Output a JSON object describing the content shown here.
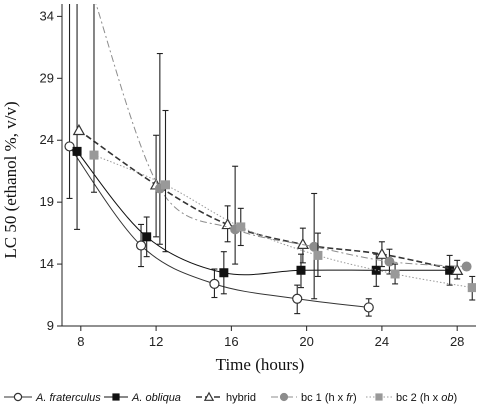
{
  "chart_data": {
    "type": "line",
    "xlabel": "Time (hours)",
    "ylabel": "LC 50 (ethanol %, v/v)",
    "xlim": [
      7,
      29
    ],
    "ylim": [
      9,
      35
    ],
    "xticks": [
      8,
      12,
      16,
      20,
      24,
      28
    ],
    "yticks": [
      9,
      14,
      19,
      24,
      29,
      34
    ],
    "grid": false,
    "legend_position": "bottom",
    "series": [
      {
        "name": "A. fraterculus",
        "italic": true,
        "marker": "open-circle",
        "line": "solid",
        "color": "#333333",
        "points": [
          {
            "x": 7.4,
            "y": 23.5,
            "lo": 19.3,
            "hi": 35.5
          },
          {
            "x": 11.2,
            "y": 15.5,
            "lo": 13.8,
            "hi": 17.2
          },
          {
            "x": 15.1,
            "y": 12.4,
            "lo": 11.3,
            "hi": 13.6
          },
          {
            "x": 19.5,
            "y": 11.2,
            "lo": 10.0,
            "hi": 12.3
          },
          {
            "x": 23.3,
            "y": 10.5,
            "lo": 9.8,
            "hi": 11.2
          }
        ]
      },
      {
        "name": "A. obliqua",
        "italic": true,
        "marker": "filled-square",
        "line": "solid",
        "color": "#111111",
        "points": [
          {
            "x": 7.8,
            "y": 23.1,
            "lo": 16.8,
            "hi": 35.5
          },
          {
            "x": 11.5,
            "y": 16.2,
            "lo": 14.6,
            "hi": 17.8
          },
          {
            "x": 15.6,
            "y": 13.3,
            "lo": 11.6,
            "hi": 15.0
          },
          {
            "x": 19.7,
            "y": 13.5,
            "lo": 12.1,
            "hi": 14.8
          },
          {
            "x": 23.7,
            "y": 13.5,
            "lo": 12.2,
            "hi": 14.8
          },
          {
            "x": 27.6,
            "y": 13.5,
            "lo": 12.3,
            "hi": 14.7
          }
        ]
      },
      {
        "name": "hybrid",
        "italic": false,
        "marker": "open-triangle",
        "line": "dashed",
        "color": "#333333",
        "points": [
          {
            "x": 7.9,
            "y": 24.8,
            "lo": 24.8,
            "hi": 24.8
          },
          {
            "x": 12.0,
            "y": 20.4,
            "lo": 16.2,
            "hi": 24.4
          },
          {
            "x": 15.8,
            "y": 17.2,
            "lo": 15.8,
            "hi": 18.7
          },
          {
            "x": 19.8,
            "y": 15.6,
            "lo": 14.1,
            "hi": 16.9
          },
          {
            "x": 24.0,
            "y": 14.8,
            "lo": 13.8,
            "hi": 15.8
          },
          {
            "x": 28.0,
            "y": 13.5,
            "lo": 12.8,
            "hi": 14.3
          }
        ]
      },
      {
        "name": "bc 1 (h x fr)",
        "name_main": "bc 1 (h x ",
        "name_italic": "fr",
        "name_end": ")",
        "italic": false,
        "marker": "filled-circle",
        "line": "dash-dot",
        "color": "#8c8c8c",
        "points": [
          {
            "x": 8.7,
            "y": 35.5,
            "lo": 35.5,
            "hi": 35.5
          },
          {
            "x": 12.2,
            "y": 20.1,
            "lo": 15.6,
            "hi": 31.0
          },
          {
            "x": 16.2,
            "y": 16.8,
            "lo": 14.0,
            "hi": 21.9
          },
          {
            "x": 20.4,
            "y": 15.4,
            "lo": 11.2,
            "hi": 19.7
          },
          {
            "x": 24.4,
            "y": 14.2,
            "lo": 13.2,
            "hi": 15.2
          },
          {
            "x": 28.5,
            "y": 13.8,
            "lo": 13.8,
            "hi": 13.8
          }
        ]
      },
      {
        "name": "bc 2 (h x ob)",
        "name_main": "bc 2 (h x ",
        "name_italic": "ob",
        "name_end": ")",
        "italic": false,
        "marker": "filled-square",
        "line": "dotted",
        "color": "#999999",
        "points": [
          {
            "x": 8.7,
            "y": 22.8,
            "lo": 19.8,
            "hi": 35.5
          },
          {
            "x": 12.5,
            "y": 20.4,
            "lo": 15.0,
            "hi": 26.4
          },
          {
            "x": 16.5,
            "y": 17.0,
            "lo": 15.5,
            "hi": 18.5
          },
          {
            "x": 20.6,
            "y": 14.7,
            "lo": 13.0,
            "hi": 16.5
          },
          {
            "x": 24.7,
            "y": 13.2,
            "lo": 12.4,
            "hi": 14.0
          },
          {
            "x": 28.8,
            "y": 12.1,
            "lo": 11.1,
            "hi": 13.0
          }
        ]
      }
    ]
  }
}
